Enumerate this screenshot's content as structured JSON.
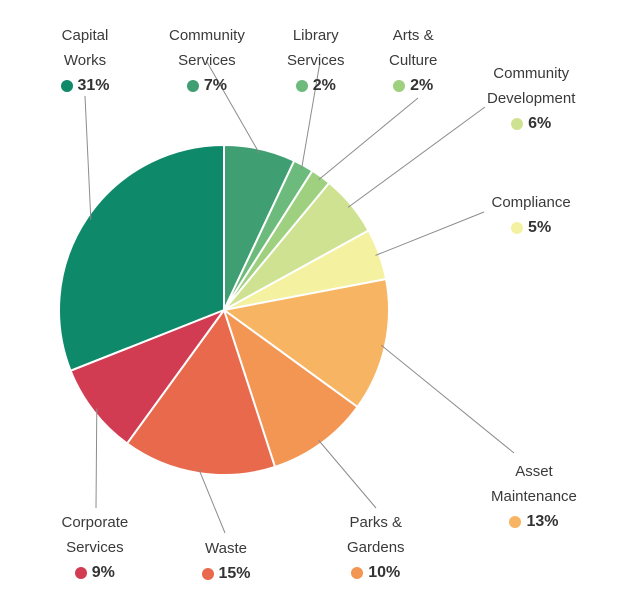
{
  "chart_data": {
    "type": "pie",
    "title": "",
    "start": "12 o'clock, clockwise",
    "slices": [
      {
        "label": [
          "Community",
          "Services"
        ],
        "value": 7,
        "display": "7%",
        "color": "#3f9e72"
      },
      {
        "label": [
          "Library",
          "Services"
        ],
        "value": 2,
        "display": "2%",
        "color": "#6dbb7c"
      },
      {
        "label": [
          "Arts &",
          "Culture"
        ],
        "value": 2,
        "display": "2%",
        "color": "#9fd07f"
      },
      {
        "label": [
          "Community",
          "Development"
        ],
        "value": 6,
        "display": "6%",
        "color": "#cfe291"
      },
      {
        "label": [
          "Compliance"
        ],
        "value": 5,
        "display": "5%",
        "color": "#f4f2a0"
      },
      {
        "label": [
          "Asset",
          "Maintenance"
        ],
        "value": 13,
        "display": "13%",
        "color": "#f7b563"
      },
      {
        "label": [
          "Parks &",
          "Gardens"
        ],
        "value": 10,
        "display": "10%",
        "color": "#f39553"
      },
      {
        "label": [
          "Waste"
        ],
        "value": 15,
        "display": "15%",
        "color": "#e8694c"
      },
      {
        "label": [
          "Corporate",
          "Services"
        ],
        "value": 9,
        "display": "9%",
        "color": "#d23c52"
      },
      {
        "label": [
          "Capital",
          "Works"
        ],
        "value": 31,
        "display": "31%",
        "color": "#0e8a6a"
      }
    ]
  }
}
